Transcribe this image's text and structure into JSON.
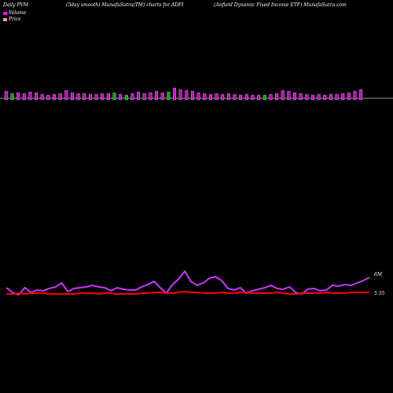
{
  "header": {
    "left": "Daily PVM",
    "mid": "(5day smooth) MunafaSutra(TM) charts for ADFI",
    "right": "(Anfield Dynamic Fixed Income   ETF) MunafaSutra.com"
  },
  "legend": [
    {
      "label": "Volume",
      "color": "#ff00ff"
    },
    {
      "label": "Price",
      "color": "#ffa07a"
    }
  ],
  "colors": {
    "volume_line": "#cc33ff",
    "price_line": "#ff0000",
    "bar_up": "#cc00cc",
    "bar_down": "#00aa00",
    "zero_line": "#cccccc"
  },
  "chart_data": {
    "type": "line",
    "value_labels": {
      "volume_last": "6M",
      "price_last": "5.55"
    },
    "volume_bars": [
      {
        "h": 9,
        "c": "up"
      },
      {
        "h": 6,
        "c": "down"
      },
      {
        "h": 7,
        "c": "up"
      },
      {
        "h": 6,
        "c": "up"
      },
      {
        "h": 8,
        "c": "up"
      },
      {
        "h": 7,
        "c": "up"
      },
      {
        "h": 5,
        "c": "up"
      },
      {
        "h": 4,
        "c": "up"
      },
      {
        "h": 5,
        "c": "up"
      },
      {
        "h": 6,
        "c": "up"
      },
      {
        "h": 10,
        "c": "up"
      },
      {
        "h": 7,
        "c": "up"
      },
      {
        "h": 6,
        "c": "up"
      },
      {
        "h": 6,
        "c": "up"
      },
      {
        "h": 5,
        "c": "up"
      },
      {
        "h": 5,
        "c": "up"
      },
      {
        "h": 6,
        "c": "up"
      },
      {
        "h": 6,
        "c": "up"
      },
      {
        "h": 7,
        "c": "down"
      },
      {
        "h": 5,
        "c": "up"
      },
      {
        "h": 4,
        "c": "down"
      },
      {
        "h": 6,
        "c": "up"
      },
      {
        "h": 8,
        "c": "up"
      },
      {
        "h": 6,
        "c": "up"
      },
      {
        "h": 7,
        "c": "up"
      },
      {
        "h": 9,
        "c": "up"
      },
      {
        "h": 7,
        "c": "up"
      },
      {
        "h": 8,
        "c": "down"
      },
      {
        "h": 13,
        "c": "up"
      },
      {
        "h": 11,
        "c": "up"
      },
      {
        "h": 10,
        "c": "up"
      },
      {
        "h": 9,
        "c": "up"
      },
      {
        "h": 7,
        "c": "up"
      },
      {
        "h": 6,
        "c": "up"
      },
      {
        "h": 5,
        "c": "up"
      },
      {
        "h": 6,
        "c": "up"
      },
      {
        "h": 5,
        "c": "up"
      },
      {
        "h": 6,
        "c": "up"
      },
      {
        "h": 5,
        "c": "up"
      },
      {
        "h": 4,
        "c": "up"
      },
      {
        "h": 5,
        "c": "up"
      },
      {
        "h": 4,
        "c": "up"
      },
      {
        "h": 4,
        "c": "up"
      },
      {
        "h": 4,
        "c": "down"
      },
      {
        "h": 5,
        "c": "up"
      },
      {
        "h": 6,
        "c": "up"
      },
      {
        "h": 10,
        "c": "up"
      },
      {
        "h": 9,
        "c": "up"
      },
      {
        "h": 7,
        "c": "up"
      },
      {
        "h": 6,
        "c": "up"
      },
      {
        "h": 5,
        "c": "up"
      },
      {
        "h": 4,
        "c": "up"
      },
      {
        "h": 5,
        "c": "up"
      },
      {
        "h": 4,
        "c": "up"
      },
      {
        "h": 5,
        "c": "up"
      },
      {
        "h": 5,
        "c": "up"
      },
      {
        "h": 6,
        "c": "up"
      },
      {
        "h": 7,
        "c": "up"
      },
      {
        "h": 9,
        "c": "up"
      },
      {
        "h": 11,
        "c": "up"
      }
    ],
    "series": [
      {
        "name": "Volume",
        "values": [
          366,
          372,
          375,
          366,
          372,
          369,
          370,
          367,
          365,
          360,
          371,
          367,
          366,
          365,
          363,
          365,
          366,
          370,
          366,
          368,
          369,
          369,
          365,
          362,
          358,
          366,
          373,
          362,
          355,
          345,
          358,
          363,
          360,
          354,
          352,
          357,
          367,
          369,
          366,
          373,
          370,
          368,
          366,
          363,
          367,
          368,
          365,
          372,
          374,
          368,
          367,
          370,
          369,
          363,
          364,
          362,
          363,
          360,
          357,
          353
        ]
      },
      {
        "name": "Price",
        "values": [
          374,
          374,
          373,
          374,
          373,
          373,
          373,
          374,
          374,
          374,
          374,
          374,
          373,
          373,
          373,
          374,
          373,
          373,
          374,
          374,
          374,
          374,
          373,
          373,
          372,
          372,
          373,
          373,
          372,
          371,
          372,
          372,
          373,
          373,
          373,
          372,
          373,
          373,
          372,
          372,
          373,
          373,
          373,
          373,
          372,
          373,
          374,
          374,
          373,
          373,
          373,
          373,
          372,
          373,
          373,
          373,
          372,
          372,
          372,
          372
        ]
      }
    ]
  }
}
